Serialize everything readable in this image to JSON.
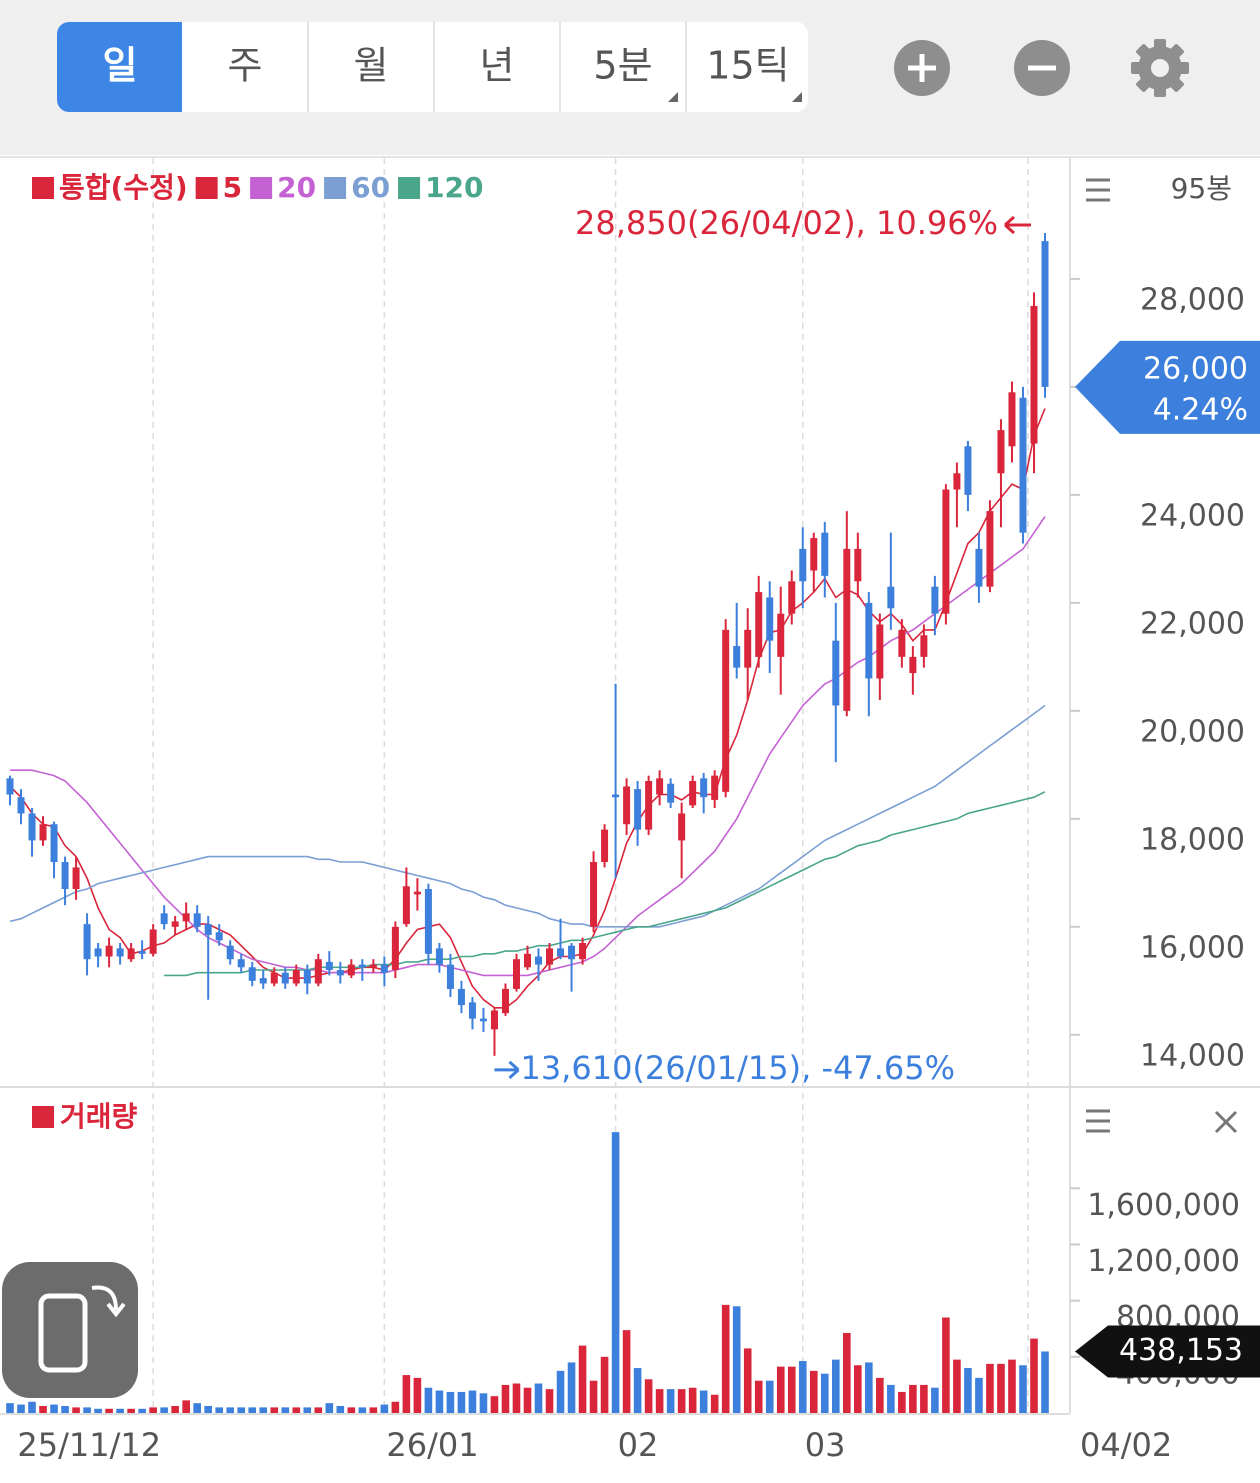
{
  "toolbar": {
    "tabs": [
      "일",
      "주",
      "월",
      "년",
      "5분",
      "15틱"
    ]
  },
  "chart_data": [
    {
      "type": "candlestick",
      "legend_title": "통합(수정)",
      "up_color": "#d9263b",
      "down_color": "#3c7fdc",
      "bar_count_label": "95봉",
      "categories": [
        null,
        null,
        null,
        null,
        null,
        null,
        null,
        null,
        null,
        null,
        null,
        null,
        null,
        "25/11/12",
        null,
        null,
        null,
        null,
        null,
        null,
        null,
        null,
        null,
        null,
        null,
        null,
        null,
        null,
        null,
        null,
        null,
        null,
        null,
        null,
        "26/01",
        null,
        null,
        null,
        null,
        null,
        null,
        null,
        null,
        null,
        null,
        null,
        null,
        null,
        null,
        null,
        null,
        null,
        null,
        null,
        null,
        "02",
        null,
        null,
        null,
        null,
        null,
        null,
        null,
        null,
        null,
        null,
        null,
        null,
        null,
        null,
        null,
        null,
        "03",
        null,
        null,
        null,
        null,
        null,
        null,
        null,
        null,
        null,
        null,
        null,
        null,
        null,
        null,
        null,
        null,
        null,
        null,
        null,
        null,
        null,
        "04/02"
      ],
      "open": [
        18750,
        18400,
        18100,
        17600,
        17900,
        17200,
        16700,
        16050,
        15600,
        15450,
        15600,
        15400,
        15550,
        15500,
        16250,
        16000,
        16100,
        16250,
        16050,
        15900,
        15650,
        15400,
        15250,
        15050,
        14950,
        15150,
        14950,
        15200,
        14950,
        15350,
        15200,
        15100,
        15300,
        15250,
        15300,
        15200,
        16050,
        16600,
        16700,
        15600,
        15300,
        14850,
        14600,
        14300,
        14100,
        14400,
        14850,
        15250,
        15450,
        15300,
        15600,
        15650,
        15400,
        16000,
        17200,
        18450,
        17900,
        18550,
        17800,
        18450,
        18650,
        17600,
        18250,
        18750,
        18350,
        18500,
        21200,
        20800,
        21000,
        22100,
        21000,
        21800,
        23000,
        22600,
        23300,
        21300,
        20000,
        22400,
        22000,
        20600,
        22300,
        21000,
        20700,
        21000,
        22300,
        21800,
        24100,
        24900,
        23000,
        22300,
        24400,
        24900,
        25800,
        24950,
        28700
      ],
      "high": [
        18800,
        18550,
        18200,
        18050,
        17950,
        17300,
        17300,
        16250,
        15700,
        15800,
        15700,
        15700,
        15750,
        16050,
        16400,
        16200,
        16450,
        16400,
        16200,
        16050,
        15750,
        15500,
        15350,
        15200,
        15250,
        15250,
        15300,
        15300,
        15500,
        15550,
        15350,
        15400,
        15400,
        15400,
        15450,
        16100,
        17100,
        16900,
        16800,
        15700,
        15500,
        15000,
        14700,
        14500,
        14500,
        14950,
        15500,
        15650,
        15600,
        15700,
        16150,
        15700,
        15800,
        17400,
        17900,
        20500,
        18750,
        18700,
        18800,
        18900,
        18750,
        18300,
        18800,
        18850,
        18900,
        21700,
        22000,
        21900,
        22500,
        22400,
        22300,
        22600,
        23400,
        23300,
        23500,
        22000,
        23700,
        23300,
        22200,
        21800,
        23300,
        21700,
        21200,
        21600,
        22500,
        24200,
        24600,
        25000,
        23300,
        23900,
        25400,
        26100,
        26000,
        27750,
        28850
      ],
      "low": [
        18250,
        17900,
        17300,
        17500,
        16900,
        16400,
        16500,
        15100,
        15250,
        15250,
        15300,
        15350,
        15400,
        15450,
        15950,
        15850,
        15950,
        15900,
        14650,
        15650,
        15300,
        15150,
        14900,
        14850,
        14900,
        14850,
        14900,
        14750,
        14900,
        15100,
        14950,
        15050,
        15000,
        15150,
        14900,
        15050,
        16000,
        16300,
        15300,
        15150,
        14700,
        14400,
        14100,
        14050,
        13610,
        14350,
        14800,
        15200,
        15000,
        15200,
        15400,
        14800,
        15300,
        15900,
        17100,
        16900,
        17700,
        17500,
        17700,
        18250,
        18200,
        16900,
        18200,
        18100,
        18200,
        18400,
        20600,
        20200,
        20800,
        20700,
        20300,
        21600,
        21900,
        22200,
        22100,
        19050,
        19900,
        22100,
        19900,
        20200,
        21500,
        20800,
        20300,
        20800,
        21400,
        21600,
        23400,
        23700,
        22000,
        22200,
        23400,
        24600,
        23100,
        24400,
        25800
      ],
      "close": [
        18450,
        18100,
        17600,
        17900,
        17200,
        16700,
        17100,
        15400,
        15450,
        15650,
        15450,
        15600,
        15500,
        15950,
        16050,
        16100,
        16250,
        16000,
        15850,
        15750,
        15400,
        15250,
        15000,
        14950,
        15150,
        14950,
        15200,
        14950,
        15400,
        15200,
        15100,
        15300,
        15250,
        15300,
        15150,
        16000,
        16750,
        16650,
        15500,
        15300,
        14850,
        14550,
        14300,
        14250,
        14450,
        14850,
        15400,
        15500,
        15300,
        15600,
        15450,
        15400,
        15700,
        17200,
        17800,
        18400,
        18600,
        17800,
        18700,
        18750,
        18300,
        18100,
        18700,
        18400,
        18800,
        21500,
        20800,
        21500,
        22200,
        21300,
        21800,
        22400,
        22400,
        23200,
        22500,
        20100,
        23000,
        23000,
        20600,
        21600,
        21900,
        21500,
        21000,
        21400,
        21800,
        24100,
        24400,
        24000,
        22300,
        23700,
        25200,
        25900,
        23300,
        27500,
        26000
      ],
      "series": [
        {
          "name": "5",
          "color": "#d9263b",
          "values": [
            18600,
            18400,
            18100,
            17900,
            17850,
            17500,
            17300,
            16900,
            16350,
            15950,
            15800,
            15500,
            15550,
            15650,
            15700,
            15850,
            15950,
            16050,
            16050,
            15950,
            15850,
            15650,
            15450,
            15250,
            15150,
            15050,
            15050,
            15050,
            15100,
            15150,
            15150,
            15200,
            15250,
            15250,
            15200,
            15400,
            15700,
            15950,
            16000,
            16050,
            15800,
            15350,
            14900,
            14650,
            14500,
            14500,
            14650,
            14900,
            15100,
            15350,
            15450,
            15450,
            15500,
            15850,
            16300,
            16900,
            17550,
            17950,
            18250,
            18450,
            18450,
            18350,
            18500,
            18450,
            18450,
            19100,
            19550,
            20200,
            20950,
            21450,
            21500,
            21850,
            22000,
            22200,
            22450,
            22100,
            22250,
            22150,
            21850,
            21650,
            21800,
            21600,
            21300,
            21500,
            21500,
            22000,
            22550,
            23100,
            23300,
            23700,
            23950,
            24200,
            24100,
            25100,
            25600
          ]
        },
        {
          "name": "20",
          "color": "#c462d4",
          "values": [
            18900,
            18900,
            18900,
            18850,
            18800,
            18700,
            18500,
            18300,
            18050,
            17800,
            17550,
            17300,
            17050,
            16800,
            16550,
            16350,
            16150,
            15950,
            15800,
            15700,
            15600,
            15500,
            15400,
            15350,
            15300,
            15250,
            15250,
            15200,
            15200,
            15150,
            15150,
            15150,
            15150,
            15150,
            15150,
            15200,
            15250,
            15300,
            15300,
            15300,
            15250,
            15200,
            15150,
            15100,
            15100,
            15100,
            15100,
            15100,
            15150,
            15200,
            15250,
            15300,
            15350,
            15450,
            15600,
            15800,
            16000,
            16200,
            16350,
            16500,
            16650,
            16800,
            17000,
            17200,
            17400,
            17700,
            18000,
            18400,
            18800,
            19200,
            19500,
            19800,
            20100,
            20300,
            20500,
            20600,
            20750,
            20900,
            21000,
            21150,
            21300,
            21400,
            21500,
            21650,
            21800,
            21950,
            22100,
            22250,
            22400,
            22550,
            22700,
            22850,
            23000,
            23300,
            23600
          ]
        },
        {
          "name": "60",
          "color": "#7b9fd3",
          "values": [
            16100,
            16150,
            16250,
            16350,
            16450,
            16550,
            16650,
            16700,
            16800,
            16850,
            16900,
            16950,
            17000,
            17050,
            17100,
            17150,
            17200,
            17250,
            17300,
            17300,
            17300,
            17300,
            17300,
            17300,
            17300,
            17300,
            17300,
            17300,
            17250,
            17250,
            17200,
            17200,
            17200,
            17150,
            17100,
            17050,
            17000,
            16950,
            16900,
            16850,
            16800,
            16700,
            16650,
            16550,
            16500,
            16400,
            16350,
            16300,
            16250,
            16150,
            16100,
            16050,
            16050,
            16000,
            16000,
            16000,
            16000,
            16000,
            16000,
            16000,
            16050,
            16100,
            16150,
            16200,
            16300,
            16400,
            16500,
            16600,
            16700,
            16850,
            17000,
            17150,
            17300,
            17450,
            17600,
            17700,
            17800,
            17900,
            18000,
            18100,
            18200,
            18300,
            18400,
            18500,
            18600,
            18750,
            18900,
            19050,
            19200,
            19350,
            19500,
            19650,
            19800,
            19950,
            20100
          ]
        },
        {
          "name": "120",
          "color": "#4aa68b",
          "values": [
            null,
            null,
            null,
            null,
            null,
            null,
            null,
            null,
            null,
            null,
            null,
            null,
            null,
            null,
            15100,
            15100,
            15100,
            15150,
            15150,
            15150,
            15150,
            15150,
            15200,
            15200,
            15200,
            15200,
            15200,
            15200,
            15250,
            15250,
            15250,
            15250,
            15250,
            15300,
            15300,
            15300,
            15350,
            15350,
            15400,
            15400,
            15400,
            15450,
            15450,
            15500,
            15500,
            15550,
            15550,
            15600,
            15650,
            15650,
            15700,
            15750,
            15750,
            15800,
            15850,
            15900,
            15950,
            16000,
            16000,
            16050,
            16100,
            16150,
            16200,
            16250,
            16300,
            16350,
            16450,
            16550,
            16650,
            16750,
            16850,
            16950,
            17050,
            17150,
            17250,
            17300,
            17400,
            17500,
            17550,
            17600,
            17700,
            17750,
            17800,
            17850,
            17900,
            17950,
            18000,
            18100,
            18150,
            18200,
            18250,
            18300,
            18350,
            18400,
            18500
          ]
        }
      ],
      "ylim": [
        13070,
        30240
      ],
      "yticks": [
        {
          "value": 14000,
          "label": "14,000"
        },
        {
          "value": 16000,
          "label": "16,000"
        },
        {
          "value": 18000,
          "label": "18,000"
        },
        {
          "value": 20000,
          "label": "20,000"
        },
        {
          "value": 22000,
          "label": "22,000"
        },
        {
          "value": 24000,
          "label": "24,000"
        },
        {
          "value": 26000,
          "label": "26,000"
        },
        {
          "value": 28000,
          "label": "28,000"
        }
      ],
      "high_label": "28,850(26/04/02), 10.96%",
      "low_label": "13,610(26/01/15), -47.65%",
      "current_price": {
        "value": 26000,
        "label": "26,000"
      },
      "current_change": "4.24%"
    },
    {
      "type": "bar",
      "title": "거래량",
      "color": "#d9263b",
      "values": [
        70000,
        60000,
        80000,
        50000,
        60000,
        50000,
        40000,
        40000,
        30000,
        30000,
        30000,
        30000,
        30000,
        40000,
        40000,
        50000,
        90000,
        70000,
        50000,
        40000,
        40000,
        40000,
        40000,
        40000,
        40000,
        40000,
        40000,
        40000,
        40000,
        70000,
        50000,
        40000,
        40000,
        40000,
        60000,
        80000,
        270000,
        250000,
        180000,
        160000,
        150000,
        150000,
        160000,
        140000,
        120000,
        200000,
        210000,
        180000,
        210000,
        170000,
        300000,
        360000,
        480000,
        230000,
        400000,
        2000000,
        590000,
        320000,
        240000,
        170000,
        170000,
        170000,
        180000,
        160000,
        130000,
        770000,
        760000,
        460000,
        230000,
        230000,
        330000,
        330000,
        370000,
        300000,
        280000,
        380000,
        570000,
        340000,
        360000,
        250000,
        200000,
        150000,
        200000,
        200000,
        180000,
        680000,
        380000,
        320000,
        250000,
        350000,
        350000,
        380000,
        340000,
        530000,
        438153
      ],
      "ylim": [
        0,
        2300000
      ],
      "yticks": [
        {
          "value": 400000,
          "label": "400,000"
        },
        {
          "value": 800000,
          "label": "800,000"
        },
        {
          "value": 1200000,
          "label": "1,200,000"
        },
        {
          "value": 1600000,
          "label": "1,600,000"
        }
      ],
      "current": {
        "value": 438153,
        "label": "438,153"
      }
    }
  ]
}
